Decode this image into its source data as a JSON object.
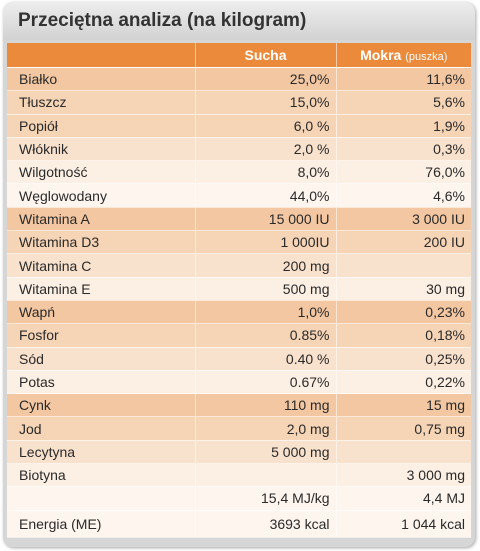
{
  "title": "Przeciętna analiza (na kilogram)",
  "header": {
    "col1": "",
    "col2": "Sucha",
    "col3_main": "Mokra",
    "col3_note": "(puszka)"
  },
  "rows": [
    {
      "label": "Białko",
      "dry": "25,0%",
      "wet": "11,6%"
    },
    {
      "label": "Tłuszcz",
      "dry": "15,0%",
      "wet": "5,6%"
    },
    {
      "label": "Popiół",
      "dry": "6,0 %",
      "wet": "1,9%"
    },
    {
      "label": "Włóknik",
      "dry": "2,0 %",
      "wet": "0,3%"
    },
    {
      "label": "Wilgotność",
      "dry": "8,0%",
      "wet": "76,0%"
    },
    {
      "label": "Węglowodany",
      "dry": "44,0%",
      "wet": "4,6%"
    },
    {
      "label": "Witamina A",
      "dry": "15 000 IU",
      "wet": "3 000 IU"
    },
    {
      "label": "Witamina D3",
      "dry": "1 000IU",
      "wet": "200 IU"
    },
    {
      "label": "Witamina C",
      "dry": "200 mg",
      "wet": ""
    },
    {
      "label": "Witamina E",
      "dry": "500 mg",
      "wet": "30 mg"
    },
    {
      "label": "Wapń",
      "dry": "1,0%",
      "wet": "0,23%"
    },
    {
      "label": "Fosfor",
      "dry": "0.85%",
      "wet": "0,18%"
    },
    {
      "label": "Sód",
      "dry": "0.40 %",
      "wet": "0,25%"
    },
    {
      "label": "Potas",
      "dry": "0.67%",
      "wet": "0,22%"
    },
    {
      "label": "Cynk",
      "dry": "110 mg",
      "wet": "15 mg"
    },
    {
      "label": "Jod",
      "dry": "2,0 mg",
      "wet": "0,75 mg"
    },
    {
      "label": "Lecytyna",
      "dry": "5 000 mg",
      "wet": ""
    },
    {
      "label": "Biotyna",
      "dry": "",
      "wet": "3 000 mg"
    }
  ],
  "energy": {
    "label": "Energia (ME)",
    "dry_line1": "15,4 MJ/kg",
    "dry_line2": "3693 kcal",
    "wet_line1": "4,4 MJ",
    "wet_line2": "1 044 kcal"
  },
  "colors": {
    "header_orange": "#eb8a3a",
    "title_text": "#333333"
  }
}
